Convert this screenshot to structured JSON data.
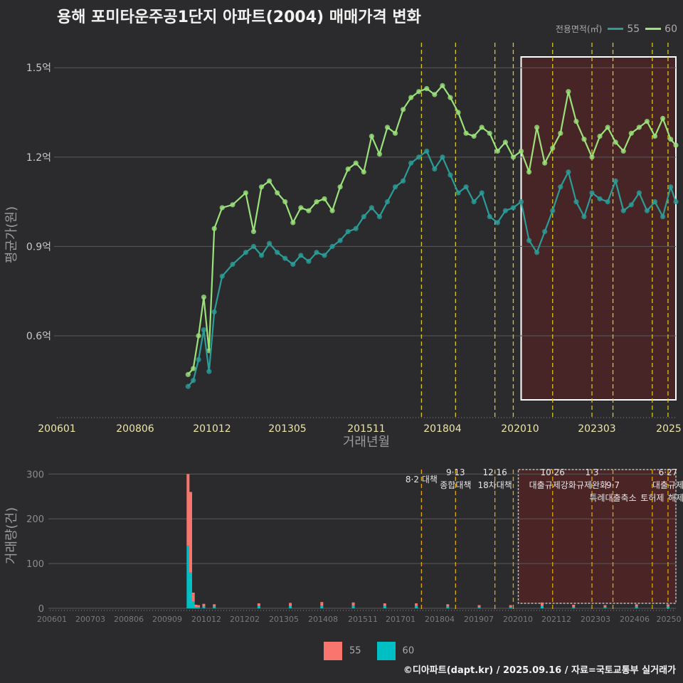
{
  "title": "용해 포미타운주공1단지 아파트(2004) 매매가격 변화",
  "legend": {
    "title": "전용면적(㎡)",
    "items": [
      {
        "label": "55",
        "color": "#2aa198"
      },
      {
        "label": "60",
        "color": "#a6e27a"
      }
    ]
  },
  "credit": "©디아파트(dapt.kr) / 2025.09.16 / 자료=국토교통부 실거래가",
  "colors": {
    "s55": "#2a9d98",
    "s60": "#9be27a",
    "bar55": "#f8766d",
    "bar60": "#00bfc4"
  },
  "chart_data": [
    {
      "type": "line",
      "xlabel": "거래년월",
      "ylabel": "평균가(원)",
      "x_ticks": [
        "200601",
        "200806",
        "201012",
        "201305",
        "201511",
        "201804",
        "202010",
        "202303",
        "2025"
      ],
      "y_ticks": [
        "0.6억",
        "0.9억",
        "1.2억",
        "1.5억"
      ],
      "y_tick_values": [
        0.6,
        0.9,
        1.2,
        1.5
      ],
      "ylim": [
        0.33,
        1.62
      ],
      "xlim": [
        "2006-01",
        "2025-09"
      ],
      "policy_lines": [
        "2017-08",
        "2018-09",
        "2019-12",
        "2020-07",
        "2021-10",
        "2023-01",
        "2023-09",
        "2024-12",
        "2025-06"
      ],
      "highlight": {
        "from": "2020-10",
        "to": "2025-09"
      },
      "series": [
        {
          "name": "60",
          "x": [
            "2010-03",
            "2010-05",
            "2010-07",
            "2010-09",
            "2010-11",
            "2011-01",
            "2011-04",
            "2011-08",
            "2012-01",
            "2012-04",
            "2012-07",
            "2012-10",
            "2013-01",
            "2013-04",
            "2013-07",
            "2013-10",
            "2014-01",
            "2014-04",
            "2014-07",
            "2014-10",
            "2015-01",
            "2015-04",
            "2015-07",
            "2015-10",
            "2016-01",
            "2016-04",
            "2016-07",
            "2016-10",
            "2017-01",
            "2017-04",
            "2017-07",
            "2017-10",
            "2018-01",
            "2018-04",
            "2018-07",
            "2018-10",
            "2019-01",
            "2019-04",
            "2019-07",
            "2019-10",
            "2020-01",
            "2020-04",
            "2020-07",
            "2020-10",
            "2021-01",
            "2021-04",
            "2021-07",
            "2021-10",
            "2022-01",
            "2022-04",
            "2022-07",
            "2022-10",
            "2023-01",
            "2023-04",
            "2023-07",
            "2023-10",
            "2024-01",
            "2024-04",
            "2024-07",
            "2024-10",
            "2025-01",
            "2025-04",
            "2025-07",
            "2025-09"
          ],
          "values": [
            0.47,
            0.49,
            0.6,
            0.73,
            0.55,
            0.96,
            1.03,
            1.04,
            1.08,
            0.95,
            1.1,
            1.12,
            1.08,
            1.05,
            0.98,
            1.03,
            1.02,
            1.05,
            1.06,
            1.02,
            1.1,
            1.16,
            1.18,
            1.15,
            1.27,
            1.21,
            1.3,
            1.28,
            1.36,
            1.4,
            1.42,
            1.43,
            1.41,
            1.44,
            1.4,
            1.35,
            1.28,
            1.27,
            1.3,
            1.28,
            1.22,
            1.25,
            1.2,
            1.22,
            1.15,
            1.3,
            1.18,
            1.23,
            1.28,
            1.42,
            1.32,
            1.26,
            1.2,
            1.27,
            1.3,
            1.25,
            1.22,
            1.28,
            1.3,
            1.32,
            1.27,
            1.33,
            1.26,
            1.24
          ]
        },
        {
          "name": "55",
          "x": [
            "2010-03",
            "2010-05",
            "2010-07",
            "2010-09",
            "2010-11",
            "2011-01",
            "2011-04",
            "2011-08",
            "2012-01",
            "2012-04",
            "2012-07",
            "2012-10",
            "2013-01",
            "2013-04",
            "2013-07",
            "2013-10",
            "2014-01",
            "2014-04",
            "2014-07",
            "2014-10",
            "2015-01",
            "2015-04",
            "2015-07",
            "2015-10",
            "2016-01",
            "2016-04",
            "2016-07",
            "2016-10",
            "2017-01",
            "2017-04",
            "2017-07",
            "2017-10",
            "2018-01",
            "2018-04",
            "2018-07",
            "2018-10",
            "2019-01",
            "2019-04",
            "2019-07",
            "2019-10",
            "2020-01",
            "2020-04",
            "2020-07",
            "2020-10",
            "2021-01",
            "2021-04",
            "2021-07",
            "2021-10",
            "2022-01",
            "2022-04",
            "2022-07",
            "2022-10",
            "2023-01",
            "2023-04",
            "2023-07",
            "2023-10",
            "2024-01",
            "2024-04",
            "2024-07",
            "2024-10",
            "2025-01",
            "2025-04",
            "2025-07",
            "2025-09"
          ],
          "values": [
            0.43,
            0.45,
            0.52,
            0.62,
            0.48,
            0.68,
            0.8,
            0.84,
            0.88,
            0.9,
            0.87,
            0.91,
            0.88,
            0.86,
            0.84,
            0.87,
            0.85,
            0.88,
            0.87,
            0.9,
            0.92,
            0.95,
            0.96,
            1.0,
            1.03,
            1.0,
            1.05,
            1.1,
            1.12,
            1.18,
            1.2,
            1.22,
            1.16,
            1.2,
            1.14,
            1.08,
            1.1,
            1.05,
            1.08,
            1.0,
            0.98,
            1.02,
            1.03,
            1.05,
            0.92,
            0.88,
            0.95,
            1.02,
            1.1,
            1.15,
            1.05,
            1.0,
            1.08,
            1.06,
            1.05,
            1.12,
            1.02,
            1.04,
            1.08,
            1.02,
            1.05,
            1.0,
            1.1,
            1.05
          ]
        }
      ]
    },
    {
      "type": "bar",
      "xlabel": "",
      "ylabel": "거래량(건)",
      "y_ticks": [
        "0",
        "100",
        "200",
        "300"
      ],
      "y_tick_values": [
        0,
        100,
        200,
        300
      ],
      "ylim": [
        0,
        310
      ],
      "x_ticks": [
        "200601",
        "200703",
        "200806",
        "200909",
        "201012",
        "201202",
        "201305",
        "201408",
        "201511",
        "201701",
        "201804",
        "201907",
        "202010",
        "202112",
        "202303",
        "202406",
        "20250"
      ],
      "series": [
        {
          "name": "55",
          "x": [
            "2010-03",
            "2010-04",
            "2010-05",
            "2010-06",
            "2010-07",
            "2010-09",
            "2011-01",
            "2012-06",
            "2013-06",
            "2014-06",
            "2015-06",
            "2016-06",
            "2017-06",
            "2018-06",
            "2019-06",
            "2020-06",
            "2021-06",
            "2022-06",
            "2023-06",
            "2024-06",
            "2025-06"
          ],
          "values": [
            160,
            180,
            20,
            5,
            4,
            6,
            5,
            6,
            7,
            8,
            7,
            6,
            6,
            5,
            4,
            4,
            8,
            5,
            4,
            5,
            5
          ]
        },
        {
          "name": "60",
          "x": [
            "2010-03",
            "2010-04",
            "2010-05",
            "2010-06",
            "2010-07",
            "2010-09",
            "2011-01",
            "2012-06",
            "2013-06",
            "2014-06",
            "2015-06",
            "2016-06",
            "2017-06",
            "2018-06",
            "2019-06",
            "2020-06",
            "2021-06",
            "2022-06",
            "2023-06",
            "2024-06",
            "2025-06"
          ],
          "values": [
            140,
            80,
            15,
            3,
            3,
            4,
            4,
            5,
            5,
            6,
            6,
            5,
            5,
            4,
            3,
            3,
            5,
            3,
            3,
            4,
            4
          ]
        }
      ],
      "annotations": [
        {
          "x": "2017-08",
          "lines": [
            "8·2 대책"
          ]
        },
        {
          "x": "2018-09",
          "lines": [
            "9·13",
            "종합대책"
          ]
        },
        {
          "x": "2019-12",
          "lines": [
            "12·16",
            "18차대책"
          ]
        },
        {
          "x": "2021-10",
          "lines": [
            "10·26",
            "대출규제강화"
          ]
        },
        {
          "x": "2023-01",
          "lines": [
            "1·3",
            "규제완화"
          ]
        },
        {
          "x": "2023-09",
          "lines": [
            "9·7",
            "특례대출축소"
          ]
        },
        {
          "x": "2024-12",
          "lines": [
            "토허제"
          ]
        },
        {
          "x": "2025-06",
          "lines": [
            "6·27",
            "대출규제"
          ]
        },
        {
          "x": "2025-09",
          "lines": [
            "해제"
          ]
        }
      ]
    }
  ]
}
